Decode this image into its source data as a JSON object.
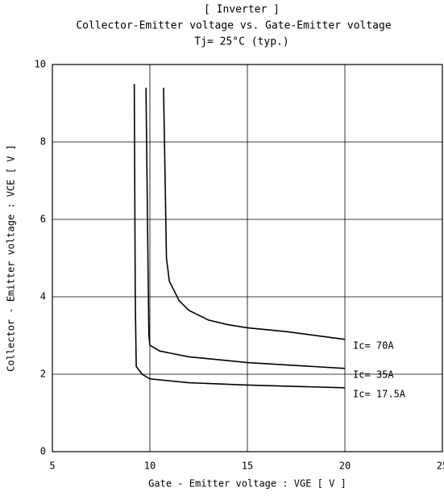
{
  "chart_data": {
    "type": "line",
    "title": "[ Inverter ]",
    "subtitles": [
      "Collector-Emitter voltage  vs. Gate-Emitter voltage",
      "Tj= 25°C  (typ.)"
    ],
    "x_label": "Gate - Emitter voltage  :  VGE  [ V ]",
    "y_label": "Collector - Emitter voltage  :  VCE  [ V ]",
    "xlim": [
      5,
      25
    ],
    "xticks": [
      5,
      10,
      15,
      20,
      25
    ],
    "ylim": [
      0,
      10
    ],
    "yticks": [
      0,
      2,
      4,
      6,
      8,
      10
    ],
    "grid": true,
    "series": [
      {
        "name": "Ic= 70A",
        "color": "#000000",
        "x": [
          10.7,
          10.8,
          10.85,
          11,
          11.5,
          12,
          13,
          14,
          15,
          17,
          20
        ],
        "values": [
          9.4,
          6.5,
          5,
          4.4,
          3.9,
          3.65,
          3.4,
          3.28,
          3.2,
          3.1,
          2.9
        ]
      },
      {
        "name": "Ic= 35A",
        "color": "#000000",
        "x": [
          9.8,
          9.9,
          9.95,
          10,
          10.5,
          11,
          12,
          15,
          20
        ],
        "values": [
          9.4,
          5,
          3,
          2.75,
          2.6,
          2.55,
          2.45,
          2.3,
          2.15
        ]
      },
      {
        "name": "Ic= 17.5A",
        "color": "#000000",
        "x": [
          9.2,
          9.25,
          9.3,
          9.6,
          10,
          12,
          15,
          20
        ],
        "values": [
          9.5,
          4,
          2.2,
          2.0,
          1.88,
          1.78,
          1.72,
          1.65
        ]
      }
    ]
  }
}
